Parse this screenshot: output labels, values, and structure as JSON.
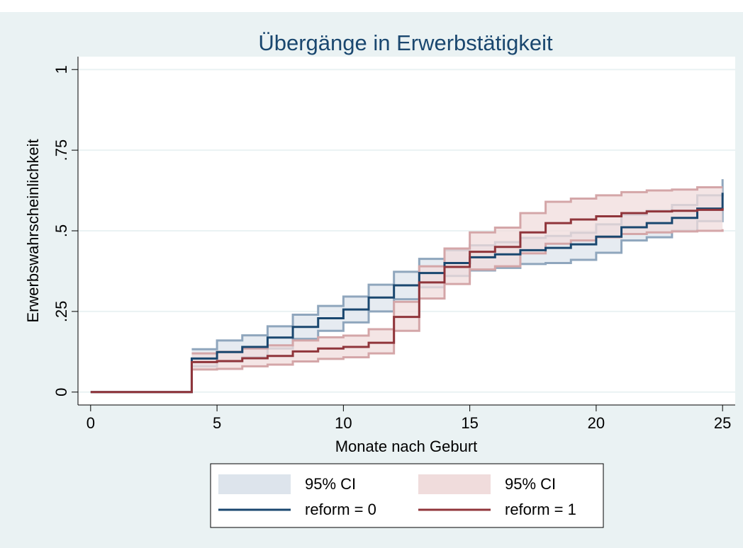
{
  "chart_data": {
    "type": "step",
    "title": "Übergänge in Erwerbstätigkeit",
    "xlabel": "Monate nach Geburt",
    "ylabel": "Erwerbswahrscheinlichkeit",
    "x": [
      0,
      1,
      2,
      3,
      4,
      5,
      6,
      7,
      8,
      9,
      10,
      11,
      12,
      13,
      14,
      15,
      16,
      17,
      18,
      19,
      20,
      21,
      22,
      23,
      24,
      25
    ],
    "xlim": [
      -0.5,
      25.5
    ],
    "xticks": [
      0,
      5,
      10,
      15,
      20,
      25
    ],
    "ylim": [
      -0.04,
      1.04
    ],
    "yticks": [
      0,
      {
        "value": 0.25,
        "label": ".25"
      },
      {
        "value": 0.5,
        "label": ".5"
      },
      {
        "value": 0.75,
        "label": ".75"
      },
      1
    ],
    "grid": true,
    "series": [
      {
        "name": "reform = 0",
        "color": "#1a476f",
        "ci_name": "95% CI",
        "ci_color": "#dde4ec",
        "ci_edge": "#8fa6bd",
        "values": [
          0,
          0,
          0,
          0,
          0.104,
          0.124,
          0.14,
          0.169,
          0.202,
          0.229,
          0.256,
          0.293,
          0.331,
          0.369,
          0.4,
          0.418,
          0.427,
          0.44,
          0.447,
          0.458,
          0.482,
          0.511,
          0.524,
          0.54,
          0.569,
          0.618
        ],
        "upper": [
          null,
          null,
          null,
          null,
          0.133,
          0.16,
          0.176,
          0.204,
          0.24,
          0.267,
          0.296,
          0.333,
          0.373,
          0.413,
          0.44,
          0.455,
          0.465,
          0.478,
          0.484,
          0.494,
          0.52,
          0.55,
          0.563,
          0.58,
          0.61,
          0.66
        ],
        "lower": [
          null,
          null,
          null,
          null,
          0.08,
          0.095,
          0.108,
          0.135,
          0.165,
          0.19,
          0.216,
          0.25,
          0.288,
          0.325,
          0.36,
          0.377,
          0.385,
          0.397,
          0.4,
          0.41,
          0.432,
          0.47,
          0.48,
          0.5,
          0.53,
          0.57
        ]
      },
      {
        "name": "reform = 1",
        "color": "#90353b",
        "ci_name": "95% CI",
        "ci_color": "#f0dcdc",
        "ci_edge": "#d4a6a8",
        "values": [
          0,
          0,
          0,
          0,
          0.093,
          0.096,
          0.105,
          0.112,
          0.126,
          0.135,
          0.14,
          0.153,
          0.233,
          0.34,
          0.388,
          0.435,
          0.45,
          0.495,
          0.524,
          0.535,
          0.545,
          0.555,
          0.56,
          0.562,
          0.565,
          0.57
        ],
        "upper": [
          null,
          null,
          null,
          null,
          0.12,
          0.125,
          0.135,
          0.145,
          0.16,
          0.17,
          0.175,
          0.195,
          0.28,
          0.39,
          0.445,
          0.495,
          0.51,
          0.555,
          0.59,
          0.6,
          0.61,
          0.62,
          0.625,
          0.628,
          0.635,
          0.635
        ],
        "lower": [
          null,
          null,
          null,
          null,
          0.07,
          0.072,
          0.08,
          0.085,
          0.095,
          0.103,
          0.108,
          0.12,
          0.19,
          0.29,
          0.335,
          0.38,
          0.39,
          0.43,
          0.46,
          0.47,
          0.48,
          0.49,
          0.495,
          0.498,
          0.5,
          0.505
        ]
      }
    ]
  }
}
